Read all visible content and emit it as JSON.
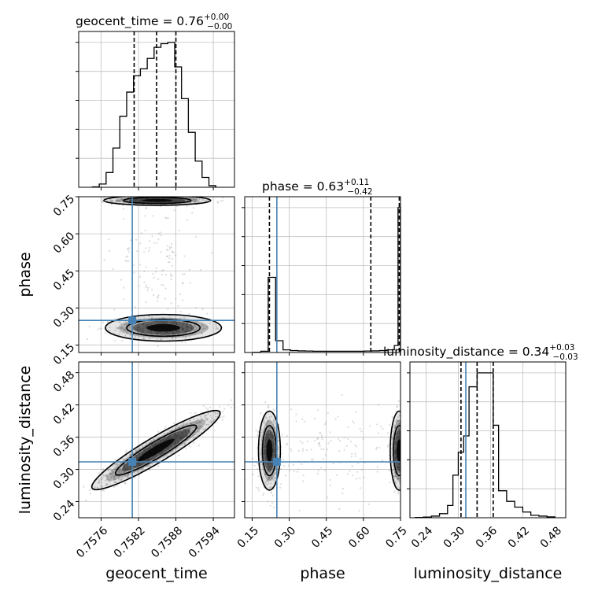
{
  "chart_data": {
    "type": "corner",
    "parameters": [
      "geocent_time",
      "phase",
      "luminosity_distance"
    ],
    "injection": {
      "geocent_time": 0.7581,
      "phase": 0.25,
      "luminosity_distance": 0.314
    },
    "colors": {
      "injection": "#4682b4",
      "hist": "#000000",
      "grid": "#c0c0c0",
      "points": "#9a9a9a",
      "density_fill": "#000000"
    },
    "axis_labels": {
      "x": [
        "geocent_time",
        "phase",
        "luminosity_distance"
      ],
      "y": [
        "phase",
        "luminosity_distance"
      ]
    },
    "grid": true,
    "marginals": [
      {
        "param": "geocent_time",
        "title_main": "geocent_time = 0.76",
        "title_sup": "+0.00",
        "title_sub": "−0.00",
        "range": [
          0.75724,
          0.75974
        ],
        "quantiles": [
          0.75813,
          0.75849,
          0.7588
        ],
        "ticks": [
          0.7576,
          0.7582,
          0.7588,
          0.7594
        ],
        "tick_labels": [
          "0.7576",
          "0.7582",
          "0.7588",
          "0.7594"
        ],
        "bin_edges": [
          0.75746,
          0.75757,
          0.75768,
          0.75779,
          0.7579,
          0.75801,
          0.75812,
          0.75823,
          0.75834,
          0.75845,
          0.75856,
          0.75867,
          0.75878,
          0.75889,
          0.759,
          0.75911,
          0.75922,
          0.75933,
          0.75944
        ],
        "counts": [
          1,
          10,
          45,
          120,
          217,
          291,
          341,
          362,
          394,
          428,
          439,
          443,
          368,
          271,
          168,
          80,
          30,
          5
        ]
      },
      {
        "param": "phase",
        "title_main": "phase = 0.63",
        "title_sup": "+0.11",
        "title_sub": "−0.42",
        "range": [
          0.12,
          0.75
        ],
        "quantiles": [
          0.22,
          0.63,
          0.745
        ],
        "ticks": [
          0.15,
          0.3,
          0.45,
          0.6,
          0.75
        ],
        "tick_labels": [
          "0.15",
          "0.30",
          "0.45",
          "0.60",
          "0.75"
        ],
        "bin_edges": [
          0.155,
          0.185,
          0.215,
          0.245,
          0.275,
          0.305,
          0.335,
          0.365,
          0.395,
          0.425,
          0.455,
          0.485,
          0.515,
          0.545,
          0.575,
          0.605,
          0.635,
          0.665,
          0.695,
          0.725,
          0.74,
          0.75
        ],
        "counts": [
          2,
          12,
          700,
          110,
          25,
          18,
          15,
          14,
          12,
          12,
          12,
          12,
          12,
          12,
          12,
          14,
          15,
          18,
          25,
          65,
          1350
        ]
      },
      {
        "param": "luminosity_distance",
        "title_main": "luminosity_distance = 0.34",
        "title_sup": "+0.03",
        "title_sub": "−0.03",
        "range": [
          0.21,
          0.5
        ],
        "quantiles": [
          0.305,
          0.335,
          0.365
        ],
        "ticks": [
          0.24,
          0.3,
          0.36,
          0.42,
          0.48
        ],
        "tick_labels": [
          "0.24",
          "0.30",
          "0.36",
          "0.42",
          "0.48"
        ],
        "bin_edges": [
          0.22,
          0.235,
          0.25,
          0.265,
          0.28,
          0.29,
          0.3,
          0.31,
          0.32,
          0.335,
          0.35,
          0.365,
          0.375,
          0.39,
          0.405,
          0.42,
          0.435,
          0.45,
          0.465,
          0.48
        ],
        "counts": [
          3,
          8,
          20,
          50,
          150,
          520,
          800,
          1000,
          1600,
          1770,
          1770,
          1130,
          330,
          200,
          130,
          70,
          30,
          20,
          10
        ]
      }
    ],
    "pairs": [
      {
        "x": "geocent_time",
        "y": "phase",
        "ticks_y": [
          0.15,
          0.3,
          0.45,
          0.6,
          0.75
        ],
        "tick_labels_y": [
          "0.15",
          "0.30",
          "0.45",
          "0.60",
          "0.75"
        ],
        "clusters": [
          {
            "cx": 0.7585,
            "cy": 0.735,
            "sx": 0.00035,
            "sy": 0.008,
            "rho": 0.0,
            "weight": 0.55
          },
          {
            "cx": 0.7586,
            "cy": 0.22,
            "sx": 0.00038,
            "sy": 0.022,
            "rho": 0.0,
            "weight": 0.35
          },
          {
            "cx": 0.7585,
            "cy": 0.48,
            "sx": 0.00035,
            "sy": 0.16,
            "rho": 0.0,
            "weight": 0.1
          }
        ]
      },
      {
        "x": "geocent_time",
        "y": "luminosity_distance",
        "ticks_y": [
          0.24,
          0.3,
          0.36,
          0.42,
          0.48
        ],
        "tick_labels_y": [
          "0.24",
          "0.30",
          "0.36",
          "0.42",
          "0.48"
        ],
        "clusters": [
          {
            "cx": 0.75848,
            "cy": 0.336,
            "sx": 0.00042,
            "sy": 0.03,
            "rho": 0.93,
            "weight": 1.0
          }
        ]
      },
      {
        "x": "phase",
        "y": "luminosity_distance",
        "clusters": [
          {
            "cx": 0.22,
            "cy": 0.335,
            "sx": 0.018,
            "sy": 0.03,
            "rho": 0.0,
            "weight": 0.45
          },
          {
            "cx": 0.745,
            "cy": 0.335,
            "sx": 0.015,
            "sy": 0.03,
            "rho": 0.0,
            "weight": 0.45
          },
          {
            "cx": 0.48,
            "cy": 0.335,
            "sx": 0.16,
            "sy": 0.04,
            "rho": 0.0,
            "weight": 0.1
          }
        ]
      }
    ]
  }
}
